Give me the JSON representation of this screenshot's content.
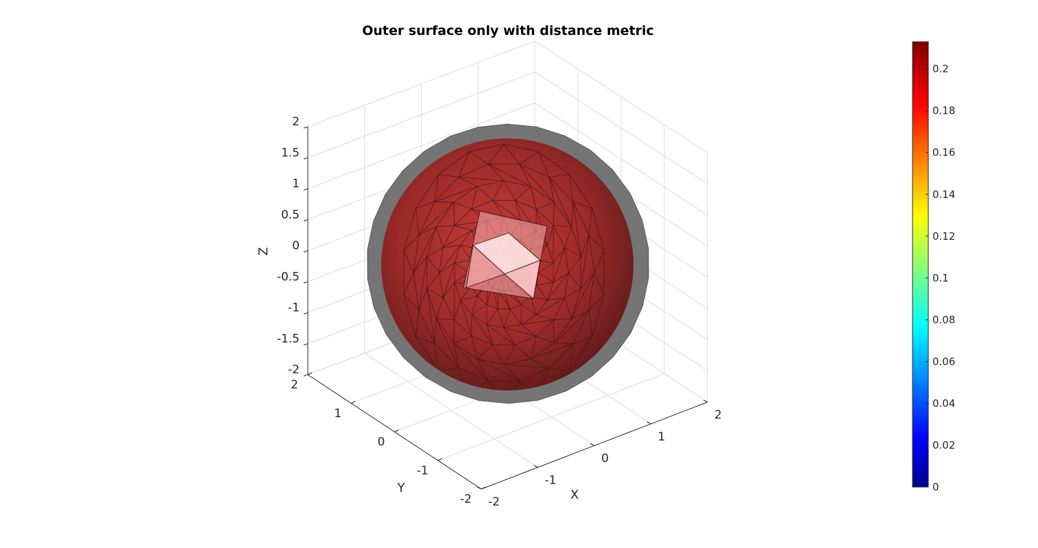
{
  "chart_data": {
    "type": "3d-surface",
    "title": "Outer surface only with distance metric",
    "xlabel": "X",
    "ylabel": "Y",
    "zlabel": "Z",
    "xlim": [
      -2,
      2
    ],
    "ylim": [
      -2,
      2
    ],
    "zlim": [
      -2,
      2
    ],
    "x_ticks": [
      "-2",
      "-1",
      "0",
      "1",
      "2"
    ],
    "y_ticks": [
      "-2",
      "-1",
      "0",
      "1",
      "2"
    ],
    "z_ticks": [
      "-2",
      "-1.5",
      "-1",
      "-0.5",
      "0",
      "0.5",
      "1",
      "1.5",
      "2"
    ],
    "grid": true,
    "surfaces": [
      {
        "shape": "sphere",
        "face_color": "#808080",
        "edge_color": "#4a4a4a",
        "transparent": true
      },
      {
        "shape": "sphere-mesh",
        "colored_by": "distance",
        "face_color": "#8b1a1a",
        "edge_color": "#3a1010",
        "transparent": true,
        "highlight_color": "#ffd0d0"
      }
    ],
    "colorbar": {
      "colormap": "jet",
      "range": [
        0,
        0.213
      ],
      "ticks": [
        "0",
        "0.02",
        "0.04",
        "0.06",
        "0.08",
        "0.1",
        "0.12",
        "0.14",
        "0.16",
        "0.18",
        "0.2"
      ],
      "tick_values": [
        0,
        0.02,
        0.04,
        0.06,
        0.08,
        0.1,
        0.12,
        0.14,
        0.16,
        0.18,
        0.2
      ]
    }
  }
}
